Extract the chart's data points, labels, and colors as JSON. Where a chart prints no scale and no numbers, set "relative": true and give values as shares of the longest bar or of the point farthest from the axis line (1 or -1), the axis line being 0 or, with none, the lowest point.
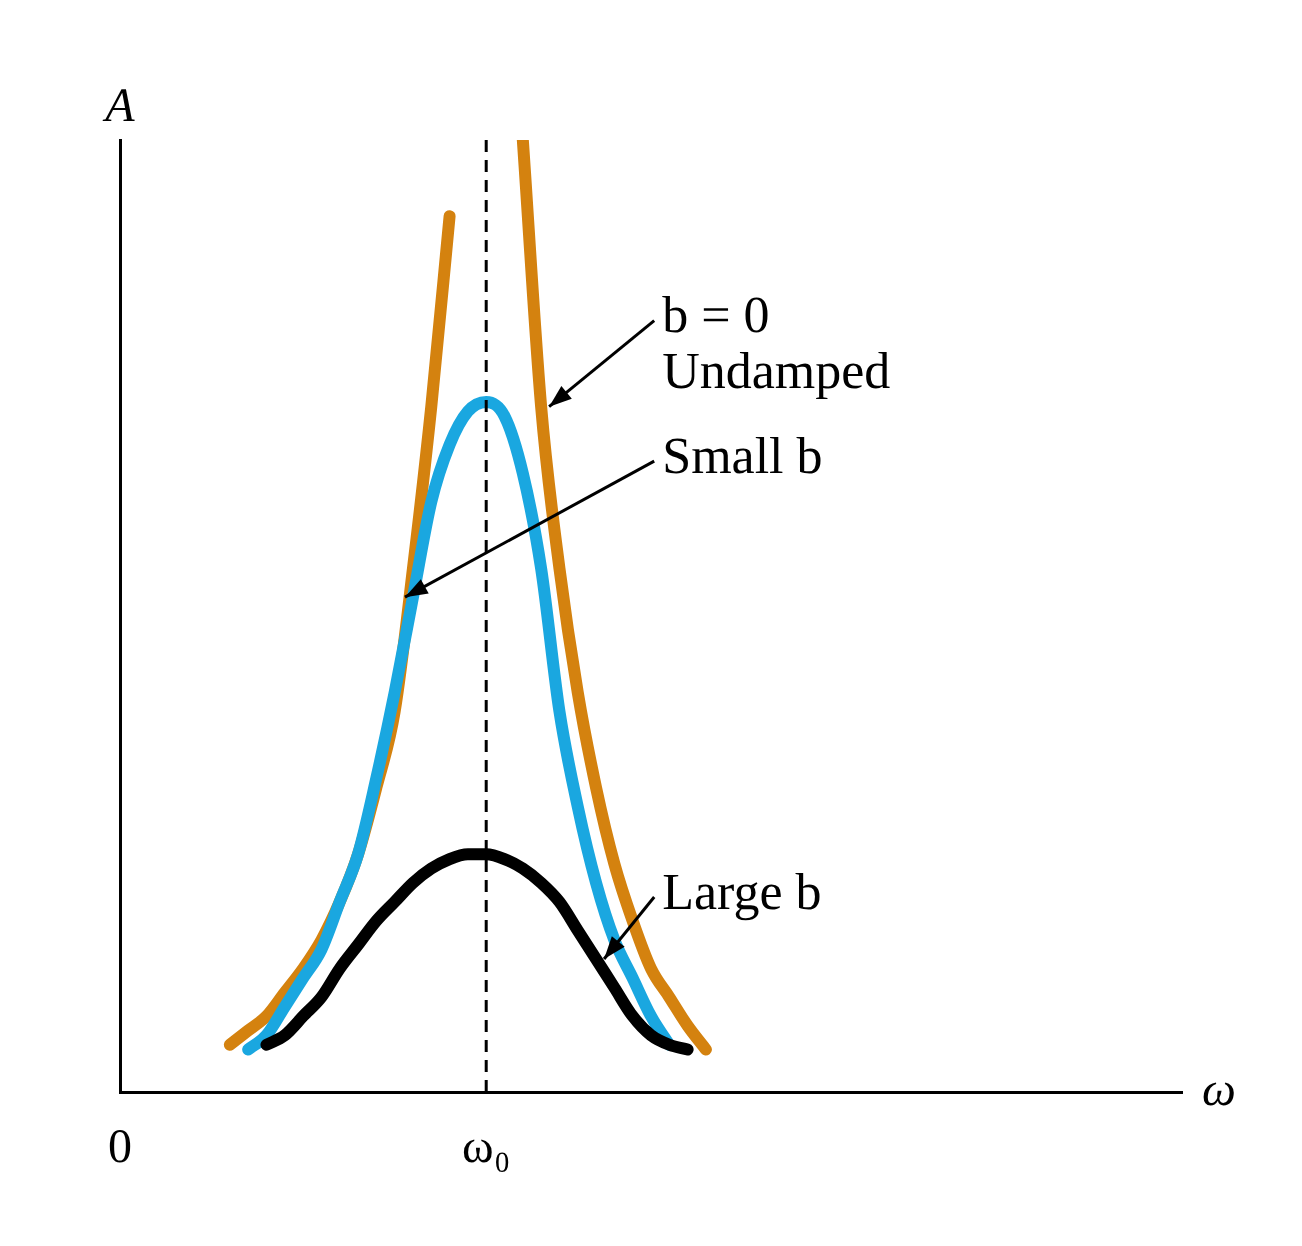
{
  "chart_data": {
    "type": "line",
    "relative": true,
    "xlabel": "ω",
    "ylabel": "A",
    "grid": false,
    "legend": false,
    "marker": "none",
    "line_style": "solid",
    "categories": [
      "0",
      null,
      null,
      null,
      null,
      null,
      null,
      null,
      null,
      null,
      null,
      null,
      null,
      null,
      null,
      null,
      null,
      null,
      null,
      null,
      "ω₀",
      null,
      null,
      null,
      null,
      null,
      null,
      null,
      null,
      null,
      null,
      null,
      null,
      null,
      null,
      null,
      null,
      null,
      null,
      null,
      null,
      null,
      null,
      null,
      null,
      null,
      null,
      null,
      null,
      null,
      null,
      null,
      null,
      null,
      null,
      null,
      null,
      null,
      null
    ],
    "ref_lines": [
      {
        "axis": "x",
        "value": "ω₀",
        "line_style": "dashed",
        "color": "#000000"
      }
    ],
    "series": [
      {
        "color": "#d4820f",
        "values": [
          null,
          null,
          null,
          null,
          null,
          null,
          0.05,
          0.065,
          0.08,
          0.105,
          0.13,
          0.16,
          0.2,
          0.25,
          0.32,
          0.4,
          0.55,
          0.72,
          0.92,
          null,
          null,
          null,
          1,
          0.72,
          0.55,
          0.42,
          0.32,
          0.24,
          0.18,
          0.13,
          0.1,
          0.07,
          0.045,
          null,
          null,
          null,
          null,
          null,
          null,
          null,
          null,
          null,
          null,
          null,
          null,
          null,
          null,
          null,
          null,
          null,
          null,
          null,
          null,
          null,
          null,
          null,
          null,
          null,
          null
        ]
      },
      {
        "color": "#1aa7e0",
        "values": [
          null,
          null,
          null,
          null,
          null,
          null,
          null,
          0.045,
          0.06,
          0.09,
          0.12,
          0.15,
          0.2,
          0.25,
          0.33,
          0.42,
          0.52,
          0.62,
          0.68,
          0.715,
          0.725,
          0.71,
          0.65,
          0.55,
          0.4,
          0.3,
          0.22,
          0.16,
          0.12,
          0.08,
          0.05,
          null,
          null,
          null,
          null,
          null,
          null,
          null,
          null,
          null,
          null,
          null,
          null,
          null,
          null,
          null,
          null,
          null,
          null,
          null,
          null,
          null,
          null,
          null,
          null,
          null,
          null,
          null,
          null
        ]
      },
      {
        "color": "#000000",
        "values": [
          null,
          null,
          null,
          null,
          null,
          null,
          null,
          null,
          0.05,
          0.06,
          0.08,
          0.1,
          0.13,
          0.155,
          0.18,
          0.2,
          0.22,
          0.235,
          0.245,
          0.25,
          0.25,
          0.245,
          0.235,
          0.22,
          0.2,
          0.17,
          0.14,
          0.11,
          0.08,
          0.06,
          0.05,
          0.045,
          null,
          null,
          null,
          null,
          null,
          null,
          null,
          null,
          null,
          null,
          null,
          null,
          null,
          null,
          null,
          null,
          null,
          null,
          null,
          null,
          null,
          null,
          null,
          null,
          null,
          null,
          null
        ]
      }
    ],
    "annotations": [
      "b = 0\nUndamped",
      "Small b",
      "Large b"
    ]
  }
}
